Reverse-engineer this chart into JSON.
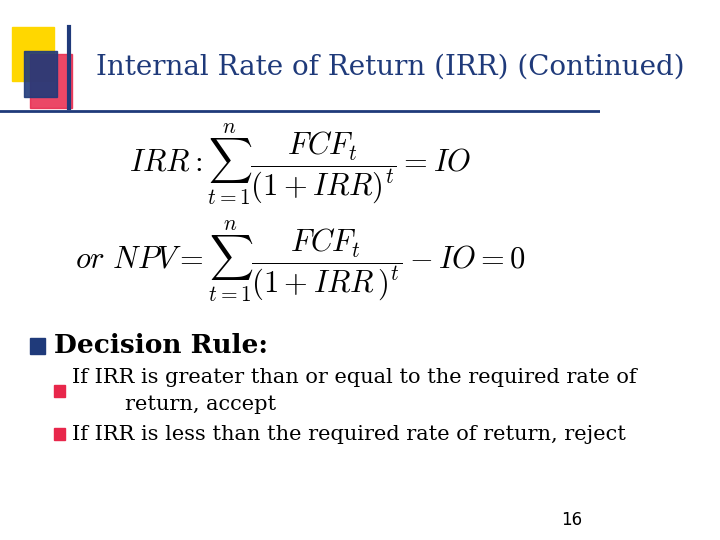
{
  "title": "Internal Rate of Return (IRR) (Continued)",
  "title_color": "#1F3A7A",
  "title_fontsize": 20,
  "bg_color": "#FFFFFF",
  "formula1": "IRR : \\sum_{t=1}^{n} \\frac{FCF_t}{(1+IRR)^t} = IO",
  "formula2": "or\\ NPV = \\sum_{t=1}^{n} \\frac{FCF_t}{(1+IRR)^t} - IO = 0",
  "bullet_main": "Decision Rule:",
  "bullet1": "If IRR is greater than or equal to the required rate of\n        return, accept",
  "bullet2": "If IRR is less than the required rate of return, reject",
  "page_number": "16",
  "square_yellow": "#FFD700",
  "square_red": "#E8274B",
  "square_blue": "#1F3A7A",
  "formula_fontsize": 22,
  "bullet_fontsize": 17,
  "sub_bullet_fontsize": 15
}
